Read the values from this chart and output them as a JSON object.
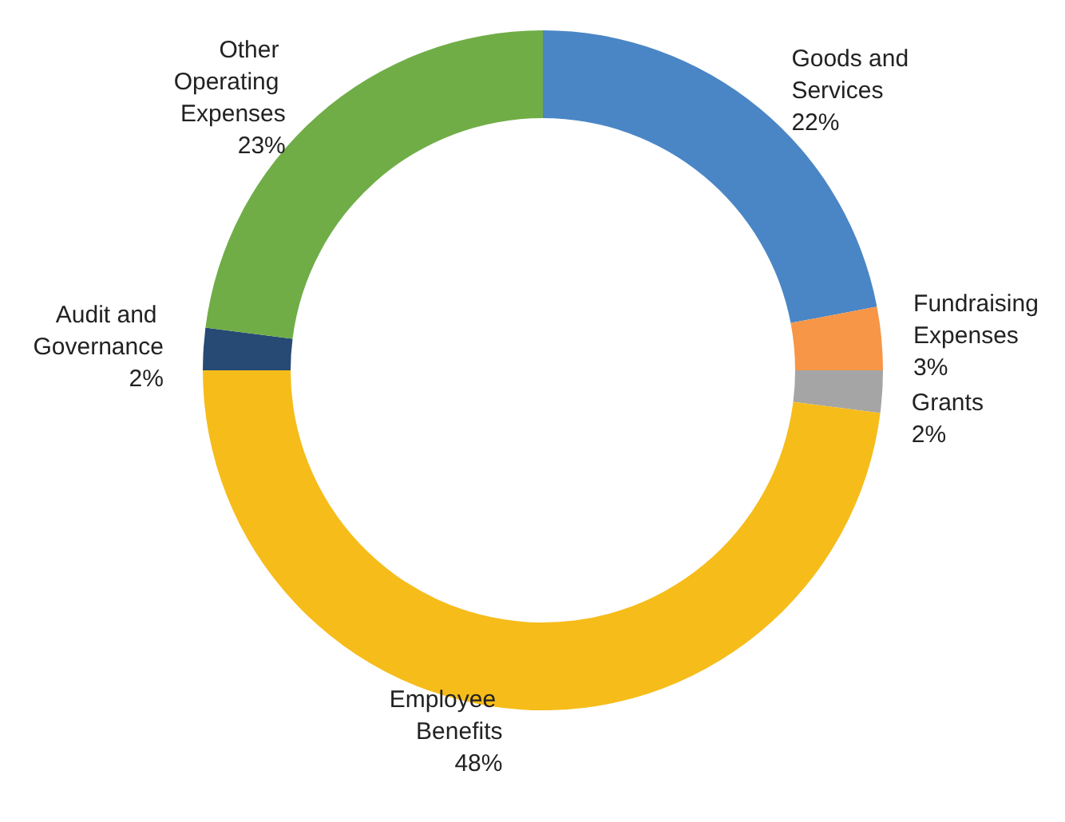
{
  "chart_data": {
    "type": "donut",
    "categories": [
      "Goods and Services",
      "Fundraising Expenses",
      "Grants",
      "Employee Benefits",
      "Audit and Governance",
      "Other Operating Expenses"
    ],
    "values": [
      22,
      3,
      2,
      48,
      2,
      23
    ],
    "colors": [
      "#4a86c5",
      "#f79646",
      "#a5a5a5",
      "#f6bc1a",
      "#264a73",
      "#70ad47"
    ],
    "value_labels": [
      "22%",
      "3%",
      "2%",
      "48%",
      "2%",
      "23%"
    ],
    "legend": false
  }
}
